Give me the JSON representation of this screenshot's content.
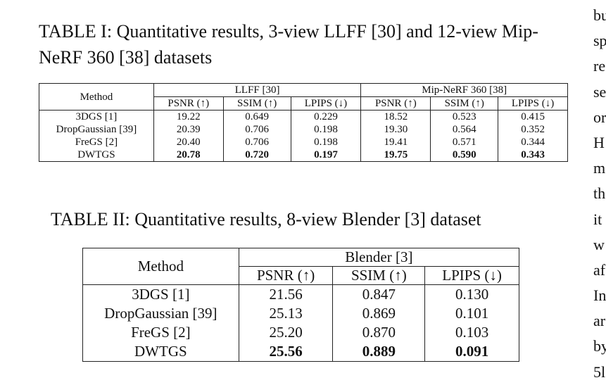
{
  "table1": {
    "caption": "TABLE I: Quantitative results, 3-view LLFF [30] and 12-view Mip-NeRF 360 [38] datasets",
    "method_header": "Method",
    "groups": [
      "LLFF [30]",
      "Mip-NeRF 360 [38]"
    ],
    "metrics": [
      "PSNR (↑)",
      "SSIM (↑)",
      "LPIPS (↓)",
      "PSNR (↑)",
      "SSIM (↑)",
      "LPIPS (↓)"
    ],
    "rows": [
      [
        "3DGS [1]",
        "19.22",
        "0.649",
        "0.229",
        "18.52",
        "0.523",
        "0.415"
      ],
      [
        "DropGaussian [39]",
        "20.39",
        "0.706",
        "0.198",
        "19.30",
        "0.564",
        "0.352"
      ],
      [
        "FreGS [2]",
        "20.40",
        "0.706",
        "0.198",
        "19.41",
        "0.571",
        "0.344"
      ],
      [
        "DWTGS",
        "20.78",
        "0.720",
        "0.197",
        "19.75",
        "0.590",
        "0.343"
      ]
    ]
  },
  "table2": {
    "caption": "TABLE II: Quantitative results, 8-view Blender [3] dataset",
    "method_header": "Method",
    "groups": [
      "Blender [3]"
    ],
    "metrics": [
      "PSNR (↑)",
      "SSIM (↑)",
      "LPIPS (↓)"
    ],
    "rows": [
      [
        "3DGS [1]",
        "21.56",
        "0.847",
        "0.130"
      ],
      [
        "DropGaussian [39]",
        "25.13",
        "0.869",
        "0.101"
      ],
      [
        "FreGS [2]",
        "25.20",
        "0.870",
        "0.103"
      ],
      [
        "DWTGS",
        "25.56",
        "0.889",
        "0.091"
      ]
    ]
  },
  "side_text": [
    "bu",
    "sp",
    "re",
    "se",
    "or",
    "H",
    "m",
    "th",
    "it",
    "w",
    "af",
    "In",
    "ar",
    "by",
    "5l"
  ]
}
